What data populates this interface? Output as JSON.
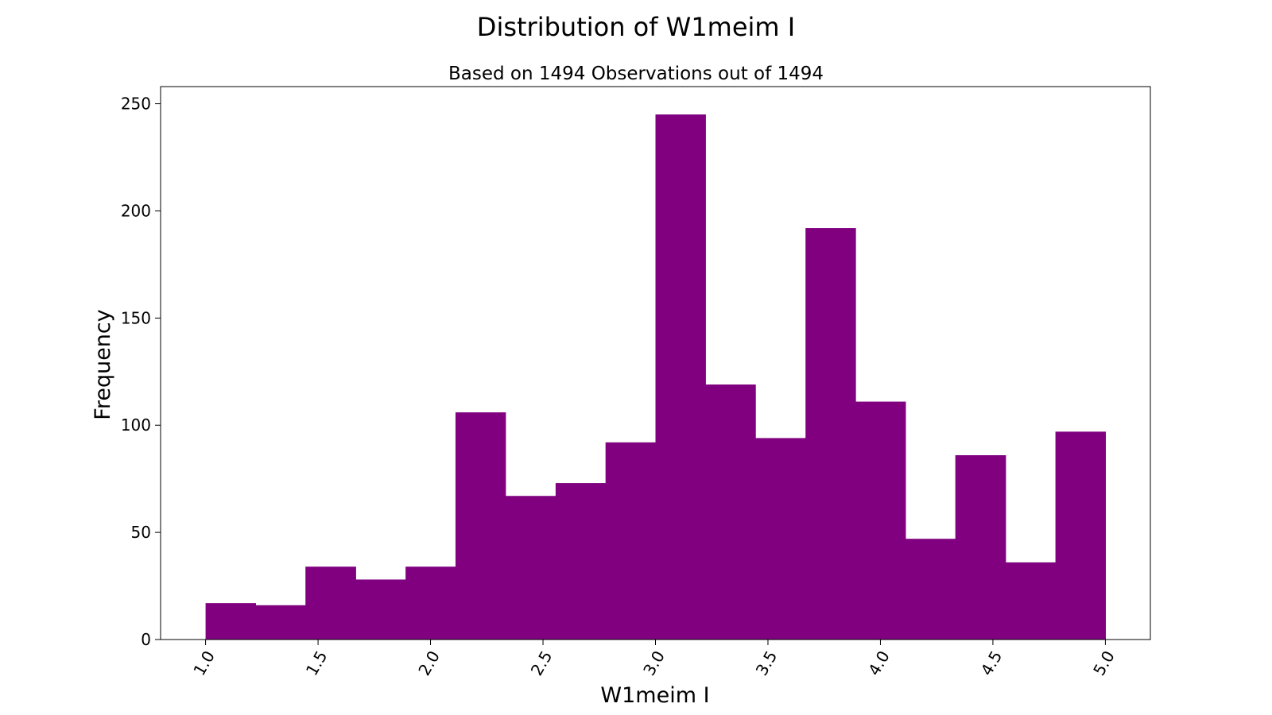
{
  "chart_data": {
    "type": "bar",
    "title": "Distribution of W1meim I",
    "subtitle": "Based on 1494 Observations out of 1494",
    "xlabel": "W1meim I",
    "ylabel": "Frequency",
    "bar_color": "#800080",
    "xlim": [
      0.8,
      5.2
    ],
    "ylim": [
      0,
      258
    ],
    "x_ticks": [
      1.0,
      1.5,
      2.0,
      2.5,
      3.0,
      3.5,
      4.0,
      4.5,
      5.0
    ],
    "x_tick_labels": [
      "1.0",
      "1.5",
      "2.0",
      "2.5",
      "3.0",
      "3.5",
      "4.0",
      "4.5",
      "5.0"
    ],
    "y_ticks": [
      0,
      50,
      100,
      150,
      200,
      250
    ],
    "y_tick_labels": [
      "0",
      "50",
      "100",
      "150",
      "200",
      "250"
    ],
    "bin_edges": [
      1.0,
      1.222,
      1.444,
      1.667,
      1.889,
      2.111,
      2.333,
      2.556,
      2.778,
      3.0,
      3.222,
      3.444,
      3.667,
      3.889,
      4.111,
      4.333,
      4.556,
      4.778,
      5.0
    ],
    "values": [
      17,
      16,
      34,
      28,
      34,
      106,
      67,
      73,
      92,
      245,
      119,
      94,
      192,
      111,
      47,
      86,
      36,
      97
    ],
    "grid": false,
    "legend": false
  }
}
